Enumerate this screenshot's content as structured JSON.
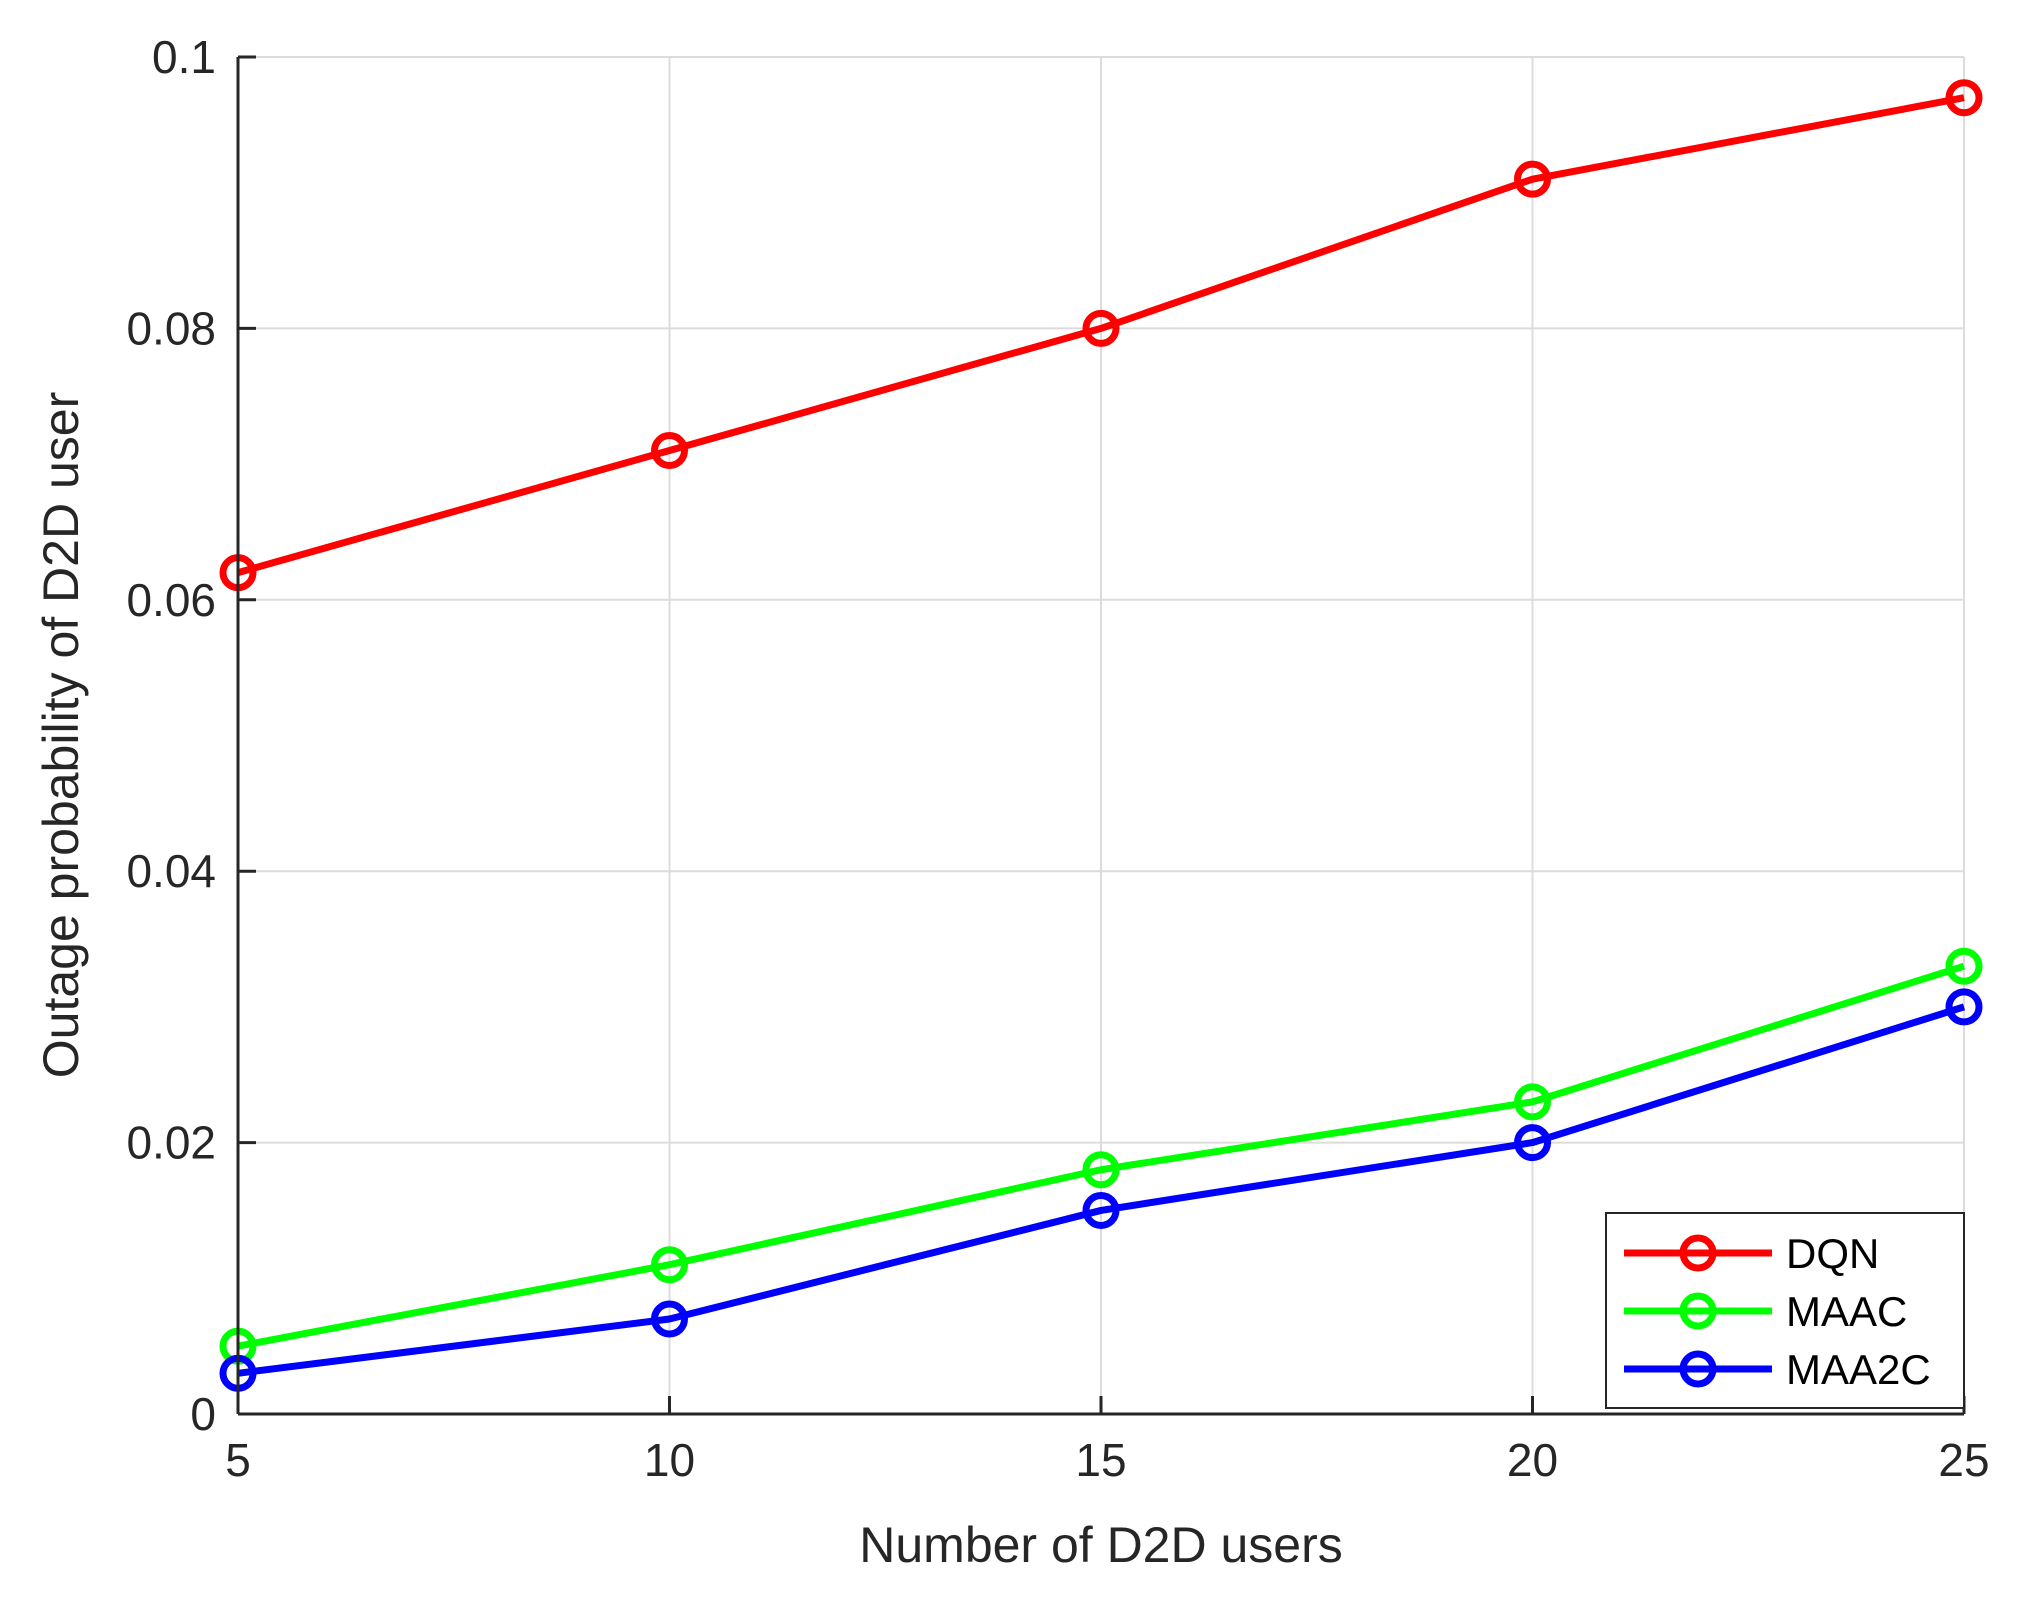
{
  "chart_data": {
    "type": "line",
    "x": [
      5,
      10,
      15,
      20,
      25
    ],
    "xlabel": "Number of D2D users",
    "ylabel": "Outage probability of D2D user",
    "xlim": [
      5,
      25
    ],
    "ylim": [
      0,
      0.1
    ],
    "xticks": [
      "5",
      "10",
      "15",
      "20",
      "25"
    ],
    "yticks": [
      "0",
      "0.02",
      "0.04",
      "0.06",
      "0.08",
      "0.1"
    ],
    "grid": true,
    "legend_position": "bottom-right",
    "marker": "circle",
    "series": [
      {
        "name": "DQN",
        "color": "#ff0000",
        "values": [
          0.062,
          0.071,
          0.08,
          0.091,
          0.097
        ]
      },
      {
        "name": "MAAC",
        "color": "#00ff00",
        "values": [
          0.005,
          0.011,
          0.018,
          0.023,
          0.033
        ]
      },
      {
        "name": "MAA2C",
        "color": "#0000ff",
        "values": [
          0.003,
          0.007,
          0.015,
          0.02,
          0.03
        ]
      }
    ]
  }
}
